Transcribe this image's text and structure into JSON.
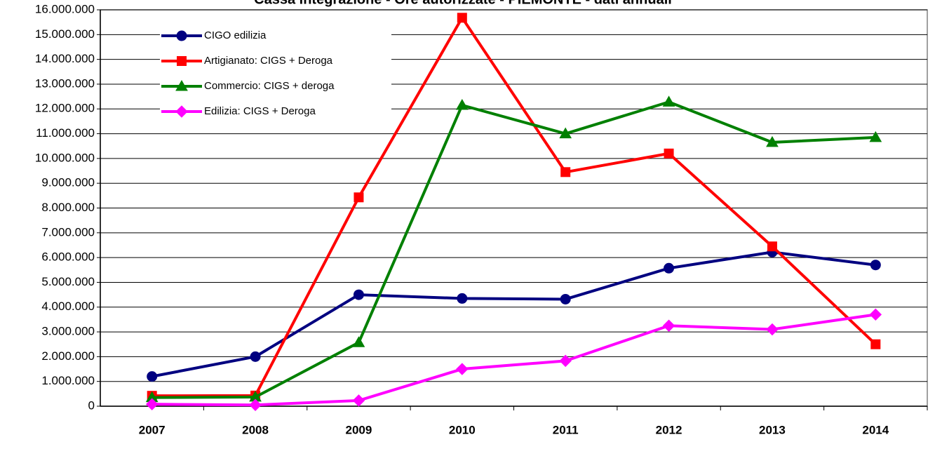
{
  "chart_data": {
    "type": "line",
    "title": "Cassa integrazione - Ore autorizzate - PIEMONTE - dati annuali",
    "categories": [
      "2007",
      "2008",
      "2009",
      "2010",
      "2011",
      "2012",
      "2013",
      "2014"
    ],
    "series": [
      {
        "name": "CIGO edilizia",
        "color": "#000080",
        "marker": "circle",
        "values": [
          1200000,
          2000000,
          4500000,
          4350000,
          4320000,
          5570000,
          6220000,
          5700000
        ]
      },
      {
        "name": "Artigianato: CIGS + Deroga",
        "color": "#ff0000",
        "marker": "square",
        "values": [
          420000,
          430000,
          8430000,
          15680000,
          9450000,
          10200000,
          6450000,
          2500000
        ]
      },
      {
        "name": "Commercio: CIGS + deroga",
        "color": "#008000",
        "marker": "triangle",
        "values": [
          350000,
          370000,
          2570000,
          12150000,
          11000000,
          12280000,
          10650000,
          10850000
        ]
      },
      {
        "name": "Edilizia: CIGS + Deroga",
        "color": "#ff00ff",
        "marker": "diamond",
        "values": [
          80000,
          50000,
          230000,
          1500000,
          1830000,
          3250000,
          3100000,
          3700000
        ]
      }
    ],
    "ylim": [
      0,
      16000000
    ],
    "yticks": [
      {
        "value": 0,
        "label": "0"
      },
      {
        "value": 1000000,
        "label": "1.000.000"
      },
      {
        "value": 2000000,
        "label": "2.000.000"
      },
      {
        "value": 3000000,
        "label": "3.000.000"
      },
      {
        "value": 4000000,
        "label": "4.000.000"
      },
      {
        "value": 5000000,
        "label": "5.000.000"
      },
      {
        "value": 6000000,
        "label": "6.000.000"
      },
      {
        "value": 7000000,
        "label": "7.000.000"
      },
      {
        "value": 8000000,
        "label": "8.000.000"
      },
      {
        "value": 9000000,
        "label": "9.000.000"
      },
      {
        "value": 10000000,
        "label": "10.000.000"
      },
      {
        "value": 11000000,
        "label": "11.000.000"
      },
      {
        "value": 12000000,
        "label": "12.000.000"
      },
      {
        "value": 13000000,
        "label": "13.000.000"
      },
      {
        "value": 14000000,
        "label": "14.000.000"
      },
      {
        "value": 15000000,
        "label": "15.000.000"
      },
      {
        "value": 16000000,
        "label": "16.000.000"
      }
    ],
    "grid": true,
    "legend": "top-left"
  }
}
